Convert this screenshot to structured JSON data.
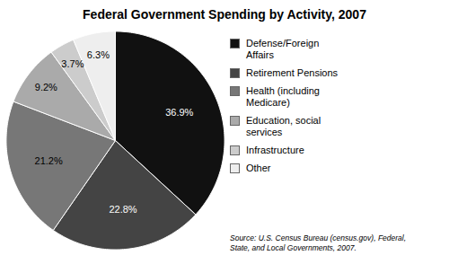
{
  "chart_data": {
    "type": "pie",
    "title": "Federal Government Spending by Activity, 2007",
    "categories": [
      "Defense/Foreign\nAffairs",
      "Retirement Pensions",
      "Health (including\nMedicare)",
      "Education, social\nservices",
      "Infrastructure",
      "Other"
    ],
    "values": [
      36.9,
      22.8,
      21.2,
      9.2,
      3.7,
      6.3
    ],
    "value_labels": [
      "36.9%",
      "22.8%",
      "21.2%",
      "9.2%",
      "3.7%",
      "6.3%"
    ],
    "colors": [
      "#111111",
      "#444444",
      "#777777",
      "#aaaaaa",
      "#cccccc",
      "#eeeeee"
    ],
    "data_labels": true,
    "legend": "right",
    "annotations": [
      "Source: U.S. Census Bureau (census.gov), Federal,\nState, and Local Governments, 2007."
    ]
  }
}
